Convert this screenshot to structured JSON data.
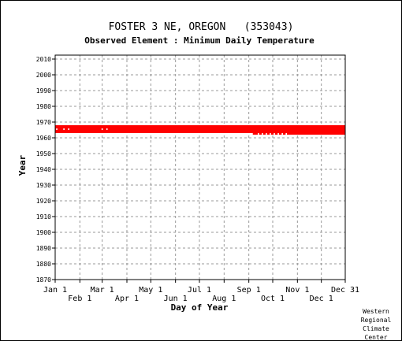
{
  "chart_data": {
    "type": "scatter",
    "title": "FOSTER 3 NE, OREGON   (353043)",
    "subtitle": "Observed Element : Minimum Daily Temperature",
    "xlabel": "Day of Year",
    "ylabel": "Year",
    "xlim": [
      1,
      365
    ],
    "ylim": [
      1870,
      2012
    ],
    "y_ticks": [
      1870,
      1880,
      1890,
      1900,
      1910,
      1920,
      1930,
      1940,
      1950,
      1960,
      1970,
      1980,
      1990,
      2000,
      2010
    ],
    "x_ticks_top": [
      {
        "label": "Jan 1",
        "day": 1
      },
      {
        "label": "Mar 1",
        "day": 60
      },
      {
        "label": "May 1",
        "day": 121
      },
      {
        "label": "Jul 1",
        "day": 182
      },
      {
        "label": "Sep 1",
        "day": 244
      },
      {
        "label": "Nov 1",
        "day": 305
      },
      {
        "label": "Dec 31",
        "day": 365
      }
    ],
    "x_ticks_bottom": [
      {
        "label": "Feb 1",
        "day": 32
      },
      {
        "label": "Apr 1",
        "day": 91
      },
      {
        "label": "Jun 1",
        "day": 152
      },
      {
        "label": "Aug 1",
        "day": 213
      },
      {
        "label": "Oct 1",
        "day": 274
      },
      {
        "label": "Dec 1",
        "day": 335
      }
    ],
    "grid": true,
    "series_color": "#ff0000",
    "coverage": [
      {
        "year_start": 1965,
        "year_end": 1968,
        "day_start": 1,
        "day_end": 365
      },
      {
        "year_start": 1963,
        "year_end": 1965,
        "day_start": 1,
        "day_end": 365
      },
      {
        "year_start": 1962,
        "year_end": 1963,
        "day_start": 249,
        "day_end": 365
      }
    ],
    "gaps": [
      {
        "year": 1965,
        "day": 3
      },
      {
        "year": 1965,
        "day": 12
      },
      {
        "year": 1965,
        "day": 18
      },
      {
        "year": 1965,
        "day": 60
      },
      {
        "year": 1965,
        "day": 66
      },
      {
        "year": 1962,
        "day": 256
      },
      {
        "year": 1962,
        "day": 261
      },
      {
        "year": 1962,
        "day": 266
      },
      {
        "year": 1962,
        "day": 271
      },
      {
        "year": 1962,
        "day": 276
      },
      {
        "year": 1962,
        "day": 281
      },
      {
        "year": 1962,
        "day": 286
      },
      {
        "year": 1962,
        "day": 291
      }
    ]
  },
  "credit": [
    "Western",
    "Regional",
    "Climate",
    "Center"
  ]
}
